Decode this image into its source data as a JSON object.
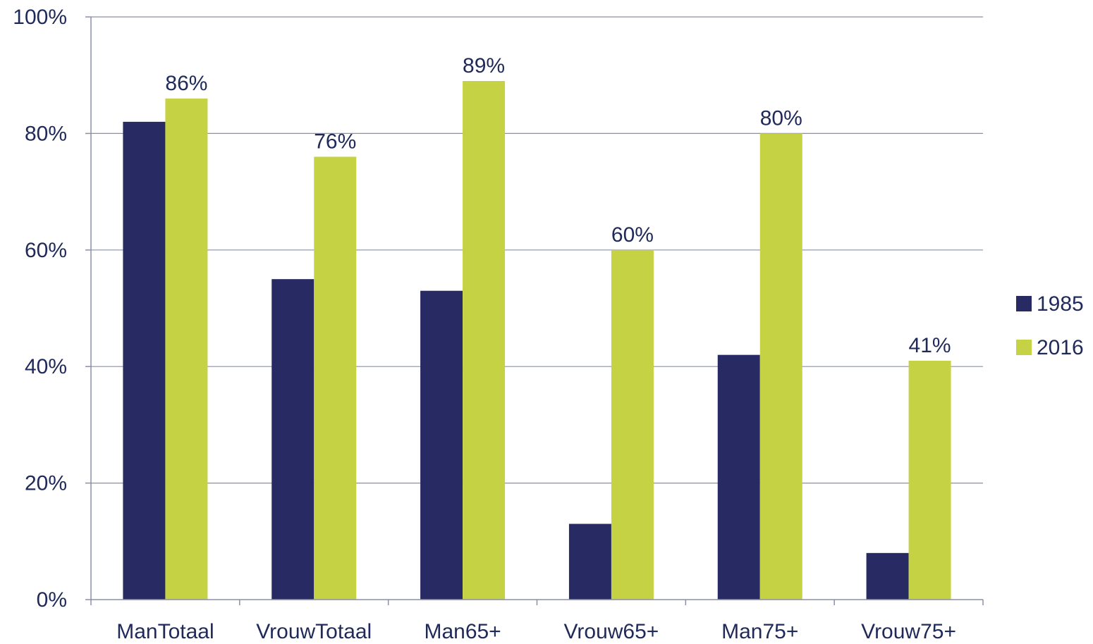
{
  "chart_data": {
    "type": "bar",
    "categories": [
      "ManTotaal",
      "VrouwTotaal",
      "Man65+",
      "Vrouw65+",
      "Man75+",
      "Vrouw75+"
    ],
    "series": [
      {
        "name": "1985",
        "values": [
          82,
          55,
          53,
          13,
          42,
          8
        ],
        "color": "#272a63",
        "show_labels": false
      },
      {
        "name": "2016",
        "values": [
          86,
          76,
          89,
          60,
          80,
          41
        ],
        "color": "#c5d244",
        "show_labels": true
      }
    ],
    "ylim": [
      0,
      100
    ],
    "yticks": [
      0,
      20,
      40,
      60,
      80,
      100
    ],
    "tick_format": "{v}%",
    "data_label_format": "{v}%",
    "grid": true,
    "legend_position": "right",
    "title": "",
    "xlabel": "",
    "ylabel": ""
  }
}
